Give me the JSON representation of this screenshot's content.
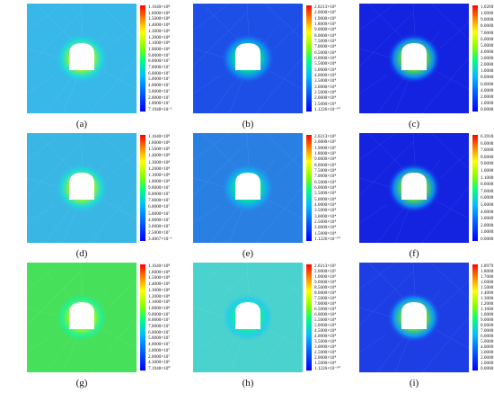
{
  "figure": {
    "panels": [
      {
        "label": "(a)",
        "palette": "p1",
        "ticks": [
          "1.1640×10⁸",
          "1.6000×10⁸",
          "1.5000×10⁸",
          "1.4000×10⁸",
          "1.3000×10⁸",
          "1.2000×10⁸",
          "1.1000×10⁸",
          "1.0000×10⁸",
          "9.0000×10⁷",
          "8.0000×10⁷",
          "7.0000×10⁷",
          "6.0000×10⁷",
          "5.0000×10⁷",
          "4.0000×10⁷",
          "3.0000×10⁷",
          "2.0000×10⁷",
          "1.0000×10⁷",
          "7.1948×10⁻¹"
        ]
      },
      {
        "label": "(b)",
        "palette": "p2",
        "ticks": [
          "2.0213×10⁵",
          "2.0000×10⁵",
          "1.9000×10⁵",
          "1.8000×10⁵",
          "9.0000×10⁴",
          "8.0000×10⁴",
          "7.5000×10⁴",
          "7.0000×10⁴",
          "6.5000×10⁴",
          "6.0000×10⁴",
          "5.5000×10⁴",
          "5.0000×10⁴",
          "4.0000×10⁴",
          "3.5000×10⁴",
          "3.0000×10⁴",
          "2.5000×10⁴",
          "2.0000×10⁴",
          "1.5000×10⁴",
          "1.1226×10⁻¹⁰"
        ]
      },
      {
        "label": "(c)",
        "palette": "p3",
        "ticks": [
          "1.0269×10⁻¹",
          "1.0000×10⁻¹",
          "9.0000×10⁻²",
          "8.0000×10⁻²",
          "7.0000×10⁻²",
          "6.0000×10⁻²",
          "5.0000×10⁻²",
          "4.0000×10⁻²",
          "3.0000×10⁻²",
          "2.0000×10⁻²",
          "1.0000×10⁻²",
          "8.0000×10⁻³",
          "6.0000×10⁻³",
          "4.0000×10⁻³",
          "2.0000×10⁻³",
          "1.0000×10⁻³",
          "0.0000×10⁰"
        ]
      },
      {
        "label": "(d)",
        "palette": "p1",
        "ticks": [
          "1.1640×10⁸",
          "1.6000×10⁸",
          "1.5000×10⁸",
          "1.4000×10⁸",
          "1.3000×10⁸",
          "1.2000×10⁸",
          "1.1000×10⁸",
          "1.0000×10⁸",
          "9.0000×10⁷",
          "8.0000×10⁷",
          "7.0000×10⁷",
          "6.0000×10⁷",
          "5.0000×10⁷",
          "4.0000×10⁷",
          "3.0000×10⁷",
          "2.5000×10⁷",
          "3.4067×10⁻¹"
        ]
      },
      {
        "label": "(e)",
        "palette": "p2",
        "ticks": [
          "2.0213×10⁵",
          "2.0000×10⁵",
          "1.9000×10⁵",
          "1.8000×10⁵",
          "9.0000×10⁴",
          "8.0000×10⁴",
          "7.5000×10⁴",
          "7.0000×10⁴",
          "6.5000×10⁴",
          "6.0000×10⁴",
          "5.5000×10⁴",
          "5.0000×10⁴",
          "4.0000×10⁴",
          "3.5000×10⁴",
          "3.0000×10⁴",
          "2.5000×10⁴",
          "2.0000×10⁴",
          "1.5000×10⁴",
          "1.1226×10⁻¹⁰"
        ]
      },
      {
        "label": "(f)",
        "palette": "p3",
        "ticks": [
          "6.3918×10⁻¹",
          "6.0000×10⁻¹",
          "7.0000×10⁻²",
          "8.0000×10⁻²",
          "9.0000×10⁻²",
          "1.0000×10⁻¹",
          "1.1000×10⁻¹",
          "8.0000×10⁻²",
          "7.0000×10⁻²",
          "6.0000×10⁻²",
          "5.0000×10⁻²",
          "4.0000×10⁻²",
          "3.0000×10⁻²",
          "2.0000×10⁻²",
          "1.0000×10⁻²",
          "0.0000×10⁰"
        ]
      },
      {
        "label": "(g)",
        "palette": "p1",
        "ticks": [
          "1.1640×10⁸",
          "1.6000×10⁸",
          "1.5000×10⁸",
          "1.4000×10⁸",
          "1.3000×10⁸",
          "1.2000×10⁸",
          "1.1000×10⁸",
          "1.0000×10⁸",
          "9.0000×10⁷",
          "8.0000×10⁷",
          "7.0000×10⁷",
          "6.0000×10⁷",
          "5.0000×10⁷",
          "4.0000×10⁷",
          "3.0000×10⁷",
          "2.0000×10⁷",
          "4.3000×10⁶",
          "7.1948×10⁰"
        ]
      },
      {
        "label": "(h)",
        "palette": "p2",
        "ticks": [
          "2.0213×10⁵",
          "2.0000×10⁵",
          "1.0000×10⁵",
          "9.0000×10⁴",
          "8.5000×10⁴",
          "8.0000×10⁴",
          "7.5000×10⁴",
          "7.0000×10⁴",
          "6.5000×10⁴",
          "6.0000×10⁴",
          "5.5000×10⁴",
          "5.0000×10⁴",
          "4.5000×10⁴",
          "4.0000×10⁴",
          "3.5000×10⁴",
          "3.0000×10⁴",
          "2.5000×10⁴",
          "2.0000×10⁴",
          "1.5000×10⁴",
          "1.1226×10⁻¹⁰"
        ]
      },
      {
        "label": "(i)",
        "palette": "p3",
        "ticks": [
          "1.8979×10⁰",
          "1.8000×10⁰",
          "1.7000×10⁰",
          "1.6000×10⁰",
          "1.5000×10⁰",
          "1.4000×10⁰",
          "1.3000×10⁰",
          "1.2000×10⁰",
          "1.1000×10⁰",
          "1.0000×10⁰",
          "9.0000×10⁻¹",
          "8.0000×10⁻¹",
          "7.0000×10⁻¹",
          "6.0000×10⁻¹",
          "5.0000×10⁻¹",
          "4.0000×10⁻¹",
          "3.0000×10⁻¹",
          "2.0000×10⁻¹",
          "1.0000×10⁻¹",
          "0.0000×10⁰"
        ]
      }
    ]
  },
  "colors": {
    "colorbar_top": "#ff0000",
    "colorbar_mid": "#7fff00",
    "colorbar_low": "#00bfff",
    "colorbar_bottom": "#0000ff",
    "field_a": "#38b8e8",
    "field_b": "#1d4fe6",
    "field_c": "#1423e0",
    "field_d": "#3ab6e4",
    "field_e": "#2a7fe2",
    "field_f": "#1423e0",
    "field_g": "#47e05a",
    "field_h": "#4ad2cf",
    "field_i": "#1d3ee4",
    "opening": "#ffffff"
  }
}
